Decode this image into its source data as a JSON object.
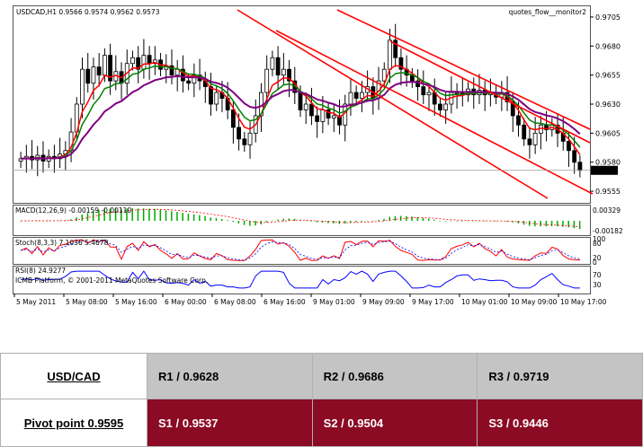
{
  "header": {
    "symbol_line": "USDCAD,H1  0.9566 0.9574 0.9562 0.9573",
    "indicator_name": "quotes_flow__monitor2"
  },
  "price_axis": {
    "ticks": [
      "0.9705",
      "0.9680",
      "0.9655",
      "0.9630",
      "0.9605",
      "0.9580",
      "0.9555"
    ],
    "current_price": "0.9573"
  },
  "macd": {
    "label": "MACD(12,26,9) -0.00159 -0.00110",
    "ticks": [
      "0.00329",
      "-0.00182"
    ]
  },
  "stoch": {
    "label": "Stoch(8,3,3) 7.1036 5.4678",
    "ticks": [
      "100",
      "80",
      "20",
      "0"
    ]
  },
  "rsi": {
    "label": "RSI(8) 24.9277",
    "ticks": [
      "70",
      "30"
    ]
  },
  "copyright": "ICMB Platform, © 2001-2011 MetaQuotes Software Corp.",
  "time_axis": [
    "5 May 2011",
    "5 May 08:00",
    "5 May 16:00",
    "6 May 00:00",
    "6 May 08:00",
    "6 May 16:00",
    "9 May 01:00",
    "9 May 09:00",
    "9 May 17:00",
    "10 May 01:00",
    "10 May 09:00",
    "10 May 17:00"
  ],
  "pivot_table": {
    "pair": "USD/CAD",
    "pivot_label": "Pivot point 0.9595",
    "r1": "R1 / 0.9628",
    "r2": "R2 / 0.9686",
    "r3": "R3 / 0.9719",
    "s1": "S1 / 0.9537",
    "s2": "S2 / 0.9504",
    "s3": "S3 / 0.9446"
  },
  "colors": {
    "bullish_candle": "#ffffff",
    "bearish_candle": "#000000",
    "channel_line": "#ff0000",
    "ma_fast": "#ff0000",
    "ma_mid": "#008000",
    "ma_slow": "#800080",
    "macd_hist": "#00aa00",
    "stoch_main": "#ff0000",
    "stoch_signal": "#0000ff",
    "rsi_line": "#0000ff",
    "resistance_bg": "#c4c4c4",
    "support_bg": "#8b0a24"
  },
  "chart_data": {
    "type": "candlestick",
    "symbol": "USDCAD",
    "timeframe": "H1",
    "ylim": [
      0.9545,
      0.9715
    ],
    "close": [
      0.9583,
      0.9585,
      0.9582,
      0.9586,
      0.9581,
      0.9585,
      0.9583,
      0.9587,
      0.959,
      0.9606,
      0.963,
      0.966,
      0.9648,
      0.9662,
      0.9655,
      0.9672,
      0.965,
      0.9658,
      0.9648,
      0.9665,
      0.967,
      0.966,
      0.9672,
      0.9665,
      0.9668,
      0.966,
      0.9663,
      0.9655,
      0.966,
      0.965,
      0.9648,
      0.9655,
      0.965,
      0.9645,
      0.963,
      0.964,
      0.9635,
      0.9625,
      0.961,
      0.96,
      0.9595,
      0.9605,
      0.962,
      0.964,
      0.966,
      0.967,
      0.9655,
      0.966,
      0.965,
      0.964,
      0.9625,
      0.963,
      0.962,
      0.9615,
      0.9625,
      0.9618,
      0.962,
      0.9612,
      0.963,
      0.964,
      0.9635,
      0.964,
      0.9645,
      0.9635,
      0.965,
      0.966,
      0.9685,
      0.967,
      0.966,
      0.9655,
      0.965,
      0.9645,
      0.9638,
      0.964,
      0.963,
      0.9625,
      0.963,
      0.964,
      0.964,
      0.9638,
      0.9643,
      0.9638,
      0.9642,
      0.9638,
      0.964,
      0.9636,
      0.964,
      0.9632,
      0.962,
      0.9612,
      0.96,
      0.9595,
      0.9605,
      0.9612,
      0.9608,
      0.9612,
      0.9605,
      0.9598,
      0.959,
      0.958,
      0.9573
    ]
  }
}
